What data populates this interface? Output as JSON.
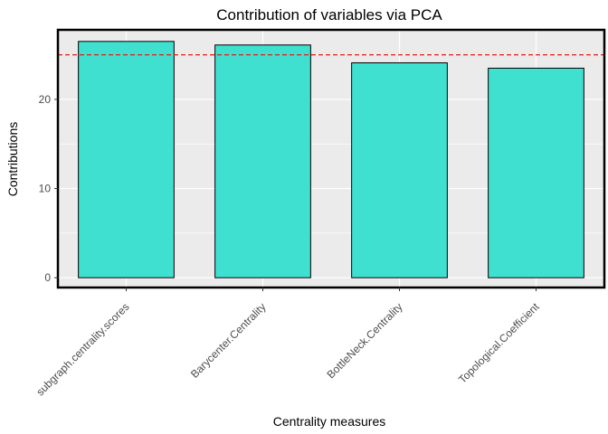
{
  "chart_data": {
    "type": "bar",
    "title": "Contribution of variables via PCA",
    "xlabel": "Centrality measures",
    "ylabel": "Contributions",
    "categories": [
      "subgraph.centrality.scores",
      "Barycenter.Centrality",
      "BottleNeck.Centrality",
      "Topological.Coefficient"
    ],
    "values": [
      26.5,
      26.1,
      24.1,
      23.5
    ],
    "ylim": [
      -1.1,
      27.8
    ],
    "yticks": [
      0,
      10,
      20
    ],
    "reference_line": {
      "value": 25,
      "style": "dashed",
      "color": "#e41a1c"
    },
    "bar_fill": "#40e0d0",
    "bar_outline": "#000000",
    "panel_background": "#ebebeb",
    "grid": true
  }
}
